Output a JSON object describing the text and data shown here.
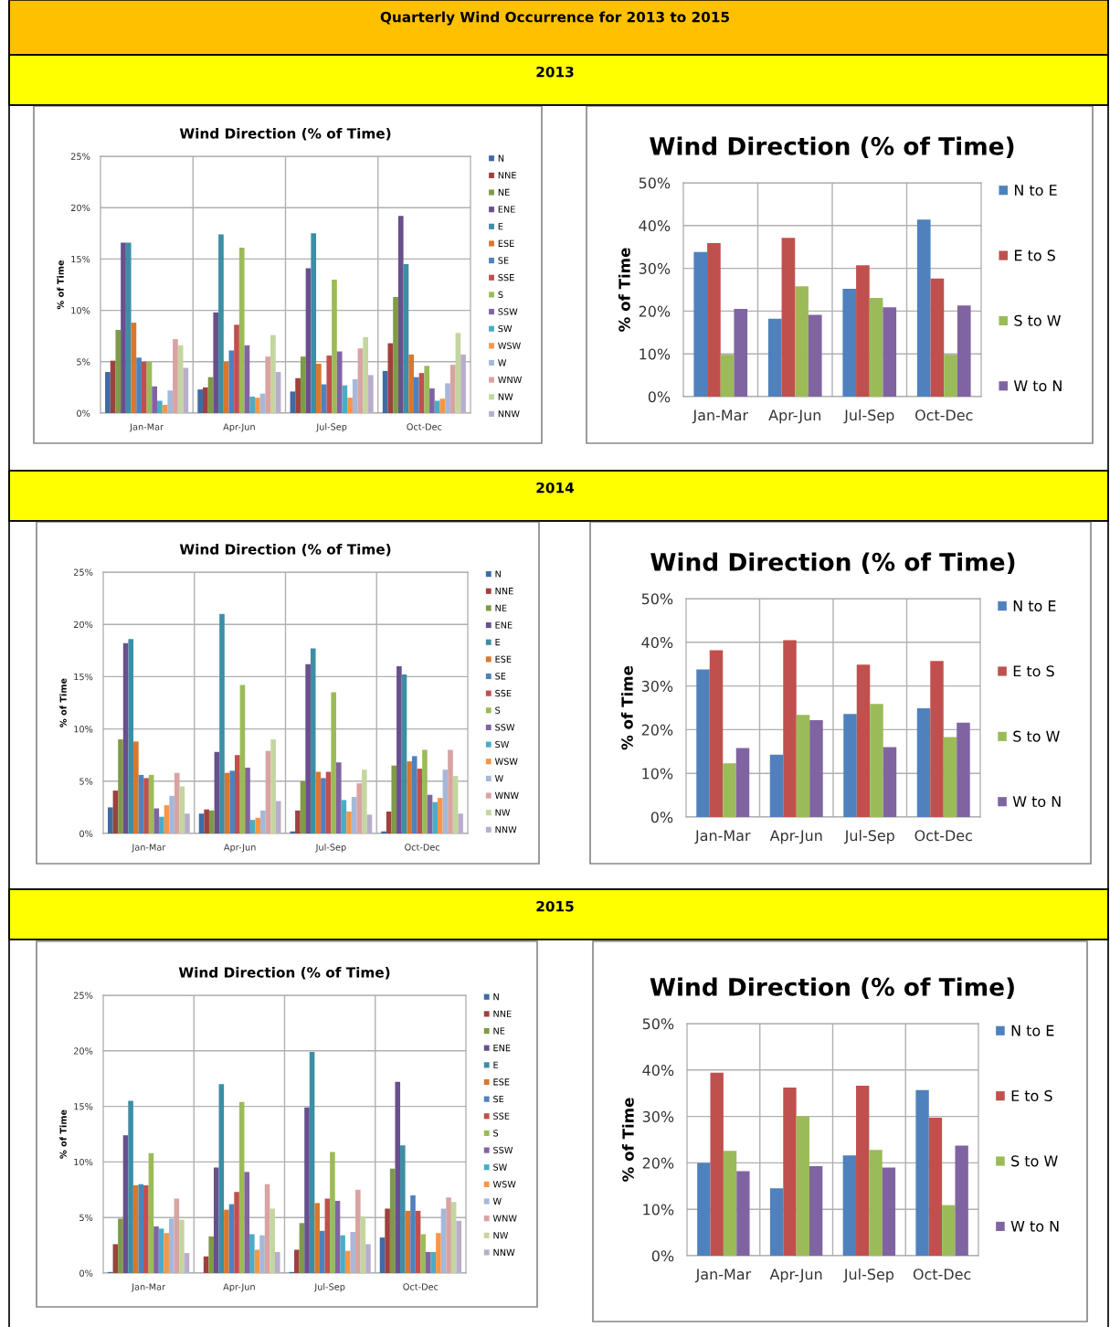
{
  "chart_data": [
    {
      "type": "other",
      "title": "Quarterly Wind Occurrence for 2013 to 2015"
    },
    {
      "type": "other",
      "title": "2013"
    },
    {
      "type": "bar",
      "title": "Wind Direction (% of Time)",
      "ylabel": "% of Time",
      "categories": [
        "Jan-Mar",
        "Apr-Jun",
        "Jul-Sep",
        "Oct-Dec"
      ],
      "ylim": [
        0,
        25
      ],
      "yticks": [
        {
          "value": 0,
          "label": "0%"
        },
        {
          "value": 5,
          "label": "5%"
        },
        {
          "value": 10,
          "label": "10%"
        },
        {
          "value": 15,
          "label": "15%"
        },
        {
          "value": 20,
          "label": "20%"
        },
        {
          "value": 25,
          "label": "25%"
        }
      ],
      "grid": true,
      "legend": "right",
      "series": [
        {
          "name": "N",
          "color": "#3e6ba5",
          "values": [
            4.0,
            2.3,
            2.1,
            4.1
          ]
        },
        {
          "name": "NNE",
          "color": "#a0403e",
          "values": [
            5.1,
            2.5,
            3.4,
            6.8
          ]
        },
        {
          "name": "NE",
          "color": "#7f9a48",
          "values": [
            8.1,
            3.5,
            5.5,
            11.3
          ]
        },
        {
          "name": "ENE",
          "color": "#694f8c",
          "values": [
            16.6,
            9.8,
            14.1,
            19.2
          ]
        },
        {
          "name": "E",
          "color": "#3c8ea5",
          "values": [
            16.6,
            17.4,
            17.5,
            14.5
          ]
        },
        {
          "name": "ESE",
          "color": "#d9772d",
          "values": [
            8.8,
            5.0,
            4.8,
            5.7
          ]
        },
        {
          "name": "SE",
          "color": "#4f81bd",
          "values": [
            5.4,
            6.1,
            2.8,
            3.5
          ]
        },
        {
          "name": "SSE",
          "color": "#c0504d",
          "values": [
            5.0,
            8.6,
            5.6,
            3.9
          ]
        },
        {
          "name": "S",
          "color": "#9bbb59",
          "values": [
            5.0,
            16.1,
            13.0,
            4.6
          ]
        },
        {
          "name": "SSW",
          "color": "#8064a2",
          "values": [
            2.6,
            6.6,
            6.0,
            2.4
          ]
        },
        {
          "name": "SW",
          "color": "#4bacc6",
          "values": [
            1.2,
            1.6,
            2.7,
            1.2
          ]
        },
        {
          "name": "WSW",
          "color": "#f79646",
          "values": [
            0.8,
            1.5,
            1.5,
            1.4
          ]
        },
        {
          "name": "W",
          "color": "#a5b8d9",
          "values": [
            2.2,
            1.9,
            3.3,
            2.9
          ]
        },
        {
          "name": "WNW",
          "color": "#d9a3a2",
          "values": [
            7.2,
            5.5,
            6.3,
            4.7
          ]
        },
        {
          "name": "NW",
          "color": "#c4d6a0",
          "values": [
            6.6,
            7.6,
            7.4,
            7.8
          ]
        },
        {
          "name": "NNW",
          "color": "#b9adcc",
          "values": [
            4.4,
            4.0,
            3.7,
            5.7
          ]
        }
      ]
    },
    {
      "type": "bar",
      "title": "Wind Direction (% of Time)",
      "ylabel": "% of Time",
      "categories": [
        "Jan-Mar",
        "Apr-Jun",
        "Jul-Sep",
        "Oct-Dec"
      ],
      "ylim": [
        0,
        50
      ],
      "yticks": [
        {
          "value": 0,
          "label": "0%"
        },
        {
          "value": 10,
          "label": "10%"
        },
        {
          "value": 20,
          "label": "20%"
        },
        {
          "value": 30,
          "label": "30%"
        },
        {
          "value": 40,
          "label": "40%"
        },
        {
          "value": 50,
          "label": "50%"
        }
      ],
      "grid": true,
      "legend": "right",
      "series": [
        {
          "name": "N to E",
          "color": "#4f81bd",
          "values": [
            33.8,
            18.2,
            25.2,
            41.4
          ]
        },
        {
          "name": "E to S",
          "color": "#c0504d",
          "values": [
            35.9,
            37.1,
            30.7,
            27.6
          ]
        },
        {
          "name": "S to W",
          "color": "#9bbb59",
          "values": [
            9.8,
            25.8,
            23.1,
            9.8
          ]
        },
        {
          "name": "W to N",
          "color": "#8064a2",
          "values": [
            20.5,
            19.1,
            20.9,
            21.3
          ]
        }
      ]
    },
    {
      "type": "other",
      "title": "2014"
    },
    {
      "type": "bar",
      "title": "Wind Direction (% of Time)",
      "ylabel": "% of Time",
      "categories": [
        "Jan-Mar",
        "Apr-Jun",
        "Jul-Sep",
        "Oct-Dec"
      ],
      "ylim": [
        0,
        25
      ],
      "yticks": [
        {
          "value": 0,
          "label": "0%"
        },
        {
          "value": 5,
          "label": "5%"
        },
        {
          "value": 10,
          "label": "10%"
        },
        {
          "value": 15,
          "label": "15%"
        },
        {
          "value": 20,
          "label": "20%"
        },
        {
          "value": 25,
          "label": "25%"
        }
      ],
      "grid": true,
      "legend": "right",
      "series": [
        {
          "name": "N",
          "color": "#3e6ba5",
          "values": [
            2.5,
            1.9,
            0.2,
            0.2
          ]
        },
        {
          "name": "NNE",
          "color": "#a0403e",
          "values": [
            4.1,
            2.3,
            2.2,
            2.1
          ]
        },
        {
          "name": "NE",
          "color": "#7f9a48",
          "values": [
            9.0,
            2.2,
            5.0,
            6.5
          ]
        },
        {
          "name": "ENE",
          "color": "#694f8c",
          "values": [
            18.2,
            7.8,
            16.2,
            16.0
          ]
        },
        {
          "name": "E",
          "color": "#3c8ea5",
          "values": [
            18.6,
            21.0,
            17.7,
            15.2
          ]
        },
        {
          "name": "ESE",
          "color": "#d9772d",
          "values": [
            8.8,
            5.8,
            5.9,
            6.9
          ]
        },
        {
          "name": "SE",
          "color": "#4f81bd",
          "values": [
            5.6,
            6.0,
            5.3,
            7.4
          ]
        },
        {
          "name": "SSE",
          "color": "#c0504d",
          "values": [
            5.3,
            7.5,
            5.9,
            6.2
          ]
        },
        {
          "name": "S",
          "color": "#9bbb59",
          "values": [
            5.6,
            14.2,
            13.5,
            8.0
          ]
        },
        {
          "name": "SSW",
          "color": "#8064a2",
          "values": [
            2.4,
            6.3,
            6.8,
            3.7
          ]
        },
        {
          "name": "SW",
          "color": "#4bacc6",
          "values": [
            1.6,
            1.3,
            3.2,
            3.0
          ]
        },
        {
          "name": "WSW",
          "color": "#f79646",
          "values": [
            2.7,
            1.5,
            2.1,
            3.4
          ]
        },
        {
          "name": "W",
          "color": "#a5b8d9",
          "values": [
            3.6,
            2.2,
            3.5,
            6.1
          ]
        },
        {
          "name": "WNW",
          "color": "#d9a3a2",
          "values": [
            5.8,
            7.9,
            4.8,
            8.0
          ]
        },
        {
          "name": "NW",
          "color": "#c4d6a0",
          "values": [
            4.5,
            9.0,
            6.1,
            5.5
          ]
        },
        {
          "name": "NNW",
          "color": "#b9adcc",
          "values": [
            1.9,
            3.1,
            1.8,
            1.9
          ]
        }
      ]
    },
    {
      "type": "bar",
      "title": "Wind Direction (% of Time)",
      "ylabel": "% of Time",
      "categories": [
        "Jan-Mar",
        "Apr-Jun",
        "Jul-Sep",
        "Oct-Dec"
      ],
      "ylim": [
        0,
        50
      ],
      "yticks": [
        {
          "value": 0,
          "label": "0%"
        },
        {
          "value": 10,
          "label": "10%"
        },
        {
          "value": 20,
          "label": "20%"
        },
        {
          "value": 30,
          "label": "30%"
        },
        {
          "value": 40,
          "label": "40%"
        },
        {
          "value": 50,
          "label": "50%"
        }
      ],
      "grid": true,
      "legend": "right",
      "series": [
        {
          "name": "N to E",
          "color": "#4f81bd",
          "values": [
            33.8,
            14.3,
            23.6,
            24.9
          ]
        },
        {
          "name": "E to S",
          "color": "#c0504d",
          "values": [
            38.2,
            40.5,
            34.9,
            35.7
          ]
        },
        {
          "name": "S to W",
          "color": "#9bbb59",
          "values": [
            12.3,
            23.4,
            25.9,
            18.3
          ]
        },
        {
          "name": "W to N",
          "color": "#8064a2",
          "values": [
            15.8,
            22.2,
            16.0,
            21.6
          ]
        }
      ]
    },
    {
      "type": "other",
      "title": "2015"
    },
    {
      "type": "bar",
      "title": "Wind Direction (% of Time)",
      "ylabel": "% of Time",
      "categories": [
        "Jan-Mar",
        "Apr-Jun",
        "Jul-Sep",
        "Oct-Dec"
      ],
      "ylim": [
        0,
        25
      ],
      "yticks": [
        {
          "value": 0,
          "label": "0%"
        },
        {
          "value": 5,
          "label": "5%"
        },
        {
          "value": 10,
          "label": "10%"
        },
        {
          "value": 15,
          "label": "15%"
        },
        {
          "value": 20,
          "label": "20%"
        },
        {
          "value": 25,
          "label": "25%"
        }
      ],
      "grid": true,
      "legend": "right",
      "series": [
        {
          "name": "N",
          "color": "#3e6ba5",
          "values": [
            0.1,
            0,
            0.1,
            3.2
          ]
        },
        {
          "name": "NNE",
          "color": "#a0403e",
          "values": [
            2.6,
            1.5,
            2.1,
            5.8
          ]
        },
        {
          "name": "NE",
          "color": "#7f9a48",
          "values": [
            4.9,
            3.3,
            4.5,
            9.4
          ]
        },
        {
          "name": "ENE",
          "color": "#694f8c",
          "values": [
            12.4,
            9.5,
            14.9,
            17.2
          ]
        },
        {
          "name": "E",
          "color": "#3c8ea5",
          "values": [
            15.5,
            17.0,
            19.9,
            11.5
          ]
        },
        {
          "name": "ESE",
          "color": "#d9772d",
          "values": [
            7.9,
            5.7,
            6.3,
            5.6
          ]
        },
        {
          "name": "SE",
          "color": "#4f81bd",
          "values": [
            8.0,
            6.2,
            3.8,
            7.0
          ]
        },
        {
          "name": "SSE",
          "color": "#c0504d",
          "values": [
            7.9,
            7.3,
            6.7,
            5.6
          ]
        },
        {
          "name": "S",
          "color": "#9bbb59",
          "values": [
            10.8,
            15.4,
            10.9,
            3.5
          ]
        },
        {
          "name": "SSW",
          "color": "#8064a2",
          "values": [
            4.2,
            9.1,
            6.5,
            1.9
          ]
        },
        {
          "name": "SW",
          "color": "#4bacc6",
          "values": [
            4.0,
            3.5,
            3.4,
            1.9
          ]
        },
        {
          "name": "WSW",
          "color": "#f79646",
          "values": [
            3.6,
            2.1,
            2.0,
            3.6
          ]
        },
        {
          "name": "W",
          "color": "#a5b8d9",
          "values": [
            4.9,
            3.4,
            3.7,
            5.8
          ]
        },
        {
          "name": "WNW",
          "color": "#d9a3a2",
          "values": [
            6.7,
            8.0,
            7.5,
            6.8
          ]
        },
        {
          "name": "NW",
          "color": "#c4d6a0",
          "values": [
            4.8,
            5.8,
            5.1,
            6.4
          ]
        },
        {
          "name": "NNW",
          "color": "#b9adcc",
          "values": [
            1.8,
            1.9,
            2.6,
            4.7
          ]
        }
      ]
    },
    {
      "type": "bar",
      "title": "Wind Direction (% of Time)",
      "ylabel": "% of Time",
      "categories": [
        "Jan-Mar",
        "Apr-Jun",
        "Jul-Sep",
        "Oct-Dec"
      ],
      "ylim": [
        0,
        50
      ],
      "yticks": [
        {
          "value": 0,
          "label": "0%"
        },
        {
          "value": 10,
          "label": "10%"
        },
        {
          "value": 20,
          "label": "20%"
        },
        {
          "value": 30,
          "label": "30%"
        },
        {
          "value": 40,
          "label": "40%"
        },
        {
          "value": 50,
          "label": "50%"
        }
      ],
      "grid": true,
      "legend": "right",
      "series": [
        {
          "name": "N to E",
          "color": "#4f81bd",
          "values": [
            20.0,
            14.5,
            21.6,
            35.7
          ]
        },
        {
          "name": "E to S",
          "color": "#c0504d",
          "values": [
            39.4,
            36.2,
            36.6,
            29.7
          ]
        },
        {
          "name": "S to W",
          "color": "#9bbb59",
          "values": [
            22.6,
            30.0,
            22.8,
            10.9
          ]
        },
        {
          "name": "W to N",
          "color": "#8064a2",
          "values": [
            18.2,
            19.3,
            19.0,
            23.7
          ]
        }
      ]
    }
  ]
}
